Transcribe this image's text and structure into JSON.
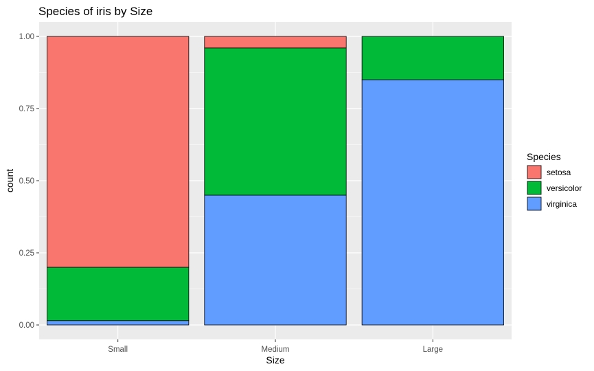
{
  "chart_data": {
    "type": "bar",
    "stacked": true,
    "title": "Species of iris by Size",
    "xlabel": "Size",
    "ylabel": "count",
    "categories": [
      "Small",
      "Medium",
      "Large"
    ],
    "series": [
      {
        "name": "setosa",
        "color": "#F8766D",
        "values": [
          0.8,
          0.04,
          0.0
        ]
      },
      {
        "name": "versicolor",
        "color": "#00BA38",
        "values": [
          0.185,
          0.51,
          0.15
        ]
      },
      {
        "name": "virginica",
        "color": "#619CFF",
        "values": [
          0.015,
          0.45,
          0.85
        ]
      }
    ],
    "stack_order": [
      "virginica",
      "versicolor",
      "setosa"
    ],
    "ylim": [
      -0.05,
      1.05
    ],
    "yticks": [
      0.0,
      0.25,
      0.5,
      0.75,
      1.0
    ],
    "ytick_labels": [
      "0.00",
      "0.25",
      "0.50",
      "0.75",
      "1.00"
    ],
    "grid": true,
    "legend": {
      "title": "Species",
      "placement": "right"
    },
    "panel_color": "#EBEBEB",
    "bar_outline_color": "#000000"
  }
}
